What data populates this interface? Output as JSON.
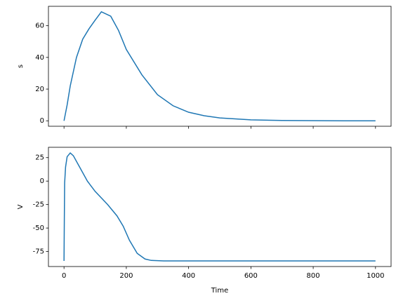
{
  "chart_data": [
    {
      "type": "line",
      "ylabel": "s",
      "xlim": [
        -50,
        1050
      ],
      "ylim": [
        -3.44,
        72.24
      ],
      "yticks": [
        0,
        20,
        40,
        60
      ],
      "x": [
        0,
        10,
        20,
        40,
        60,
        80,
        100,
        120,
        150,
        175,
        200,
        250,
        300,
        350,
        400,
        450,
        500,
        600,
        700,
        800,
        900,
        1000
      ],
      "series": [
        {
          "color": "#1f77b4",
          "values": [
            0,
            10,
            22,
            40,
            51.5,
            58,
            63.5,
            68.8,
            66,
            57,
            45,
            29,
            16.5,
            9.5,
            5.4,
            3.2,
            1.8,
            0.6,
            0.2,
            0.1,
            0,
            0
          ]
        }
      ]
    },
    {
      "type": "line",
      "xlabel": "Time",
      "ylabel": "V",
      "xlim": [
        -50,
        1050
      ],
      "ylim": [
        -91,
        36
      ],
      "xticks": [
        0,
        200,
        400,
        600,
        800,
        1000
      ],
      "yticks": [
        -75,
        -50,
        -25,
        0,
        25
      ],
      "x": [
        0,
        1,
        2,
        5,
        10,
        20,
        30,
        50,
        75,
        100,
        140,
        170,
        190,
        210,
        235,
        260,
        280,
        320,
        400,
        600,
        800,
        1000
      ],
      "series": [
        {
          "color": "#1f77b4",
          "values": [
            -85,
            -40,
            -2,
            15,
            26,
            30,
            27,
            15,
            0,
            -11,
            -25,
            -37,
            -48,
            -63,
            -77,
            -83,
            -84.5,
            -85,
            -85,
            -85,
            -85,
            -85
          ]
        }
      ]
    }
  ]
}
